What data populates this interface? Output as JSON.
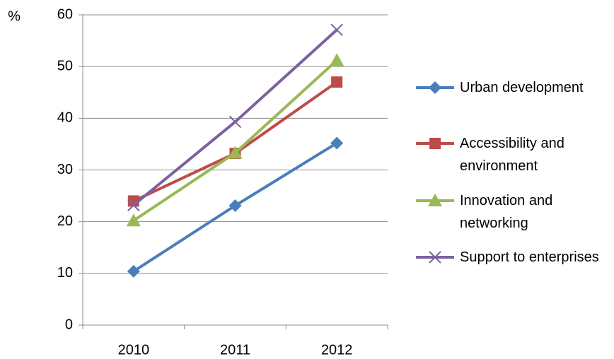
{
  "chart_data": {
    "type": "line",
    "y_label": "%",
    "categories": [
      "2010",
      "2011",
      "2012"
    ],
    "series": [
      {
        "name": "Urban development",
        "color": "#4a7ebb",
        "marker": "diamond",
        "values": [
          10.4,
          23.1,
          35.2
        ]
      },
      {
        "name": "Accessibility and environment",
        "color": "#be4b48",
        "marker": "square",
        "values": [
          24.0,
          33.2,
          47.0
        ]
      },
      {
        "name": "Innovation and networking",
        "color": "#98b954",
        "marker": "triangle",
        "values": [
          20.2,
          33.3,
          51.2
        ]
      },
      {
        "name": "Support to enterprises",
        "color": "#7d60a0",
        "marker": "x",
        "values": [
          23.2,
          39.3,
          57.1
        ]
      }
    ],
    "ylim": [
      0,
      60
    ],
    "yticks": [
      0,
      10,
      20,
      30,
      40,
      50,
      60
    ],
    "grid": true,
    "legend": "right"
  }
}
